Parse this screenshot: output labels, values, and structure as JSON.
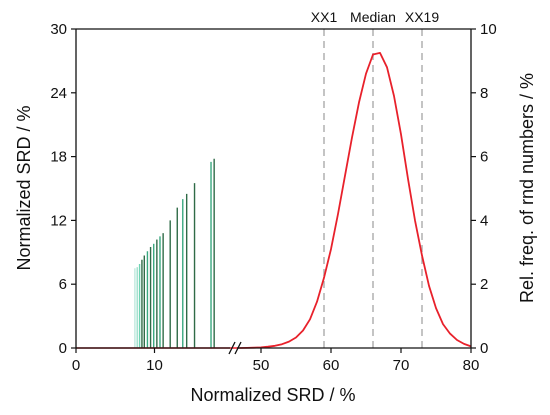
{
  "chart_data": {
    "type": "line",
    "title": "",
    "xlabel": "Normalized SRD / %",
    "ylabel_left": "Normalized SRD / %",
    "ylabel_right": "Rel. freq. of rnd numbers / %",
    "grid": false,
    "legend": "none",
    "x_axis": {
      "broken": true,
      "segments": [
        {
          "range": [
            0,
            20
          ],
          "ticks": [
            0,
            10
          ]
        },
        {
          "range": [
            47,
            80
          ],
          "ticks": [
            50,
            60,
            70,
            80
          ]
        }
      ]
    },
    "y_left": {
      "range": [
        0,
        30
      ],
      "ticks": [
        0,
        6,
        12,
        18,
        24,
        30
      ]
    },
    "y_right": {
      "range": [
        0,
        10
      ],
      "ticks": [
        0,
        2,
        4,
        6,
        8,
        10
      ]
    },
    "series": [
      {
        "type": "bar",
        "axis": "left",
        "x": [
          7.5,
          7.8,
          8.1,
          8.4,
          8.7,
          9.1,
          9.5,
          9.9,
          10.3,
          10.7,
          11.1,
          12.0,
          12.9,
          13.6,
          14.1,
          15.1,
          17.2,
          17.6
        ],
        "values": [
          7.5,
          7.6,
          7.9,
          8.3,
          8.7,
          9.1,
          9.5,
          9.8,
          10.2,
          10.5,
          10.8,
          12.0,
          13.2,
          14.0,
          14.5,
          15.5,
          17.5,
          17.8
        ],
        "colors": [
          "#bfe9dd",
          "#9fe0cc",
          "#6fd3b4",
          "#2f6b47",
          "#2f6b47",
          "#3aa980",
          "#2f6b47",
          "#3aa980",
          "#2f6b47",
          "#3aa980",
          "#2f6b47",
          "#2f6b47",
          "#2f6b47",
          "#3aa980",
          "#2f6b47",
          "#2f6b47",
          "#3aa980",
          "#2f6b47"
        ]
      },
      {
        "type": "line",
        "axis": "right",
        "color": "#e8212b",
        "x": [
          47,
          48,
          49,
          50,
          51,
          52,
          53,
          54,
          55,
          56,
          57,
          58,
          59,
          60,
          61,
          62,
          63,
          64,
          65,
          66,
          67,
          68,
          69,
          70,
          71,
          72,
          73,
          74,
          75,
          76,
          77,
          78,
          79,
          80
        ],
        "y": [
          0,
          0.003,
          0.008,
          0.02,
          0.04,
          0.07,
          0.12,
          0.2,
          0.33,
          0.55,
          0.9,
          1.45,
          2.2,
          3.1,
          4.2,
          5.4,
          6.6,
          7.7,
          8.6,
          9.2,
          9.25,
          8.8,
          7.9,
          6.7,
          5.3,
          4.0,
          2.9,
          1.95,
          1.25,
          0.75,
          0.45,
          0.25,
          0.13,
          0.05
        ]
      }
    ],
    "reference_lines": [
      {
        "x": 59,
        "label": "XX1",
        "style": "dashed",
        "color": "#b5b5b5"
      },
      {
        "x": 66,
        "label": "Median",
        "style": "dashed",
        "color": "#b5b5b5"
      },
      {
        "x": 73,
        "label": "XX19",
        "style": "dashed",
        "color": "#b5b5b5"
      }
    ],
    "colors": {
      "axis": "#111111",
      "line": "#e8212b",
      "reference": "#b5b5b5"
    }
  }
}
